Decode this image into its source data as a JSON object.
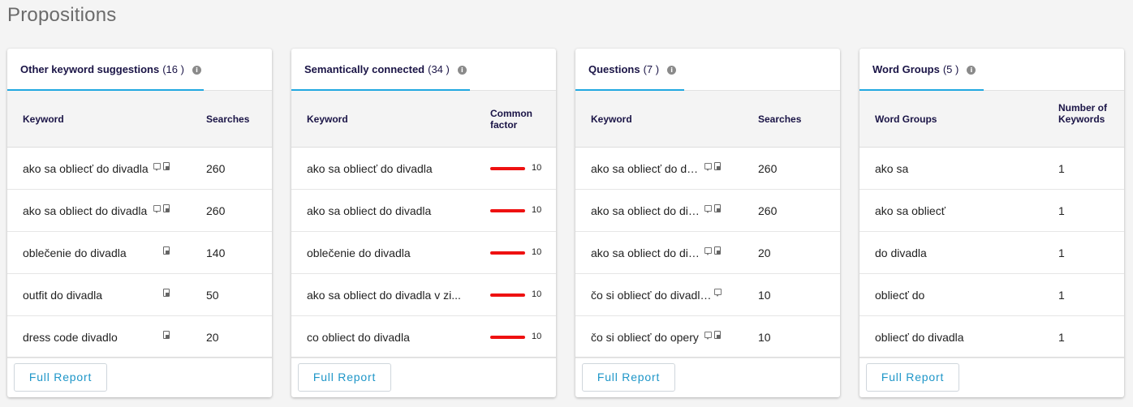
{
  "page_title": "Propositions",
  "full_report_label": "Full Report",
  "info_glyph": "i",
  "accent_color": "#21a8e0",
  "bar_color": "#ee1111",
  "cards": [
    {
      "tab_label": "Other keyword suggestions",
      "tab_count": "(16 )",
      "col1": "Keyword",
      "col2": "Searches",
      "rows": [
        {
          "keyword": "ako sa obliecť do divadla",
          "icons": [
            "chat-icon",
            "doc-icon"
          ],
          "value": "260"
        },
        {
          "keyword": "ako sa obliect do divadla",
          "icons": [
            "chat-icon",
            "doc-icon"
          ],
          "value": "260"
        },
        {
          "keyword": "oblečenie do divadla",
          "icons": [
            "doc-icon"
          ],
          "value": "140"
        },
        {
          "keyword": "outfit do divadla",
          "icons": [
            "doc-icon"
          ],
          "value": "50"
        },
        {
          "keyword": "dress code divadlo",
          "icons": [
            "doc-icon"
          ],
          "value": "20"
        }
      ]
    },
    {
      "tab_label": "Semantically connected",
      "tab_count": "(34 )",
      "col1": "Keyword",
      "col2": "Common factor",
      "rows": [
        {
          "keyword": "ako sa obliecť do divadla",
          "value": "10"
        },
        {
          "keyword": "ako sa obliect do divadla",
          "value": "10"
        },
        {
          "keyword": "oblečenie do divadla",
          "value": "10"
        },
        {
          "keyword": "ako sa obliect do divadla v zi...",
          "value": "10"
        },
        {
          "keyword": "co obliect do divadla",
          "value": "10"
        }
      ]
    },
    {
      "tab_label": "Questions",
      "tab_count": "(7 )",
      "col1": "Keyword",
      "col2": "Searches",
      "rows": [
        {
          "keyword": "ako sa obliecť do div...",
          "icons": [
            "chat-icon",
            "doc-icon"
          ],
          "value": "260"
        },
        {
          "keyword": "ako sa obliect do div...",
          "icons": [
            "chat-icon",
            "doc-icon"
          ],
          "value": "260"
        },
        {
          "keyword": "ako sa obliect do div...",
          "icons": [
            "chat-icon",
            "doc-icon"
          ],
          "value": "20"
        },
        {
          "keyword": "čo si obliecť do divadla ...",
          "icons": [
            "chat-icon"
          ],
          "value": "10"
        },
        {
          "keyword": "čo si obliecť do opery",
          "icons": [
            "chat-icon",
            "doc-icon"
          ],
          "value": "10"
        }
      ]
    },
    {
      "tab_label": "Word Groups",
      "tab_count": "(5 )",
      "col1": "Word Groups",
      "col2": "Number of Keywords",
      "rows": [
        {
          "keyword": "ako sa",
          "value": "1"
        },
        {
          "keyword": "ako sa obliecť",
          "value": "1"
        },
        {
          "keyword": "do divadla",
          "value": "1"
        },
        {
          "keyword": "obliecť do",
          "value": "1"
        },
        {
          "keyword": "obliecť do divadla",
          "value": "1"
        }
      ]
    }
  ]
}
